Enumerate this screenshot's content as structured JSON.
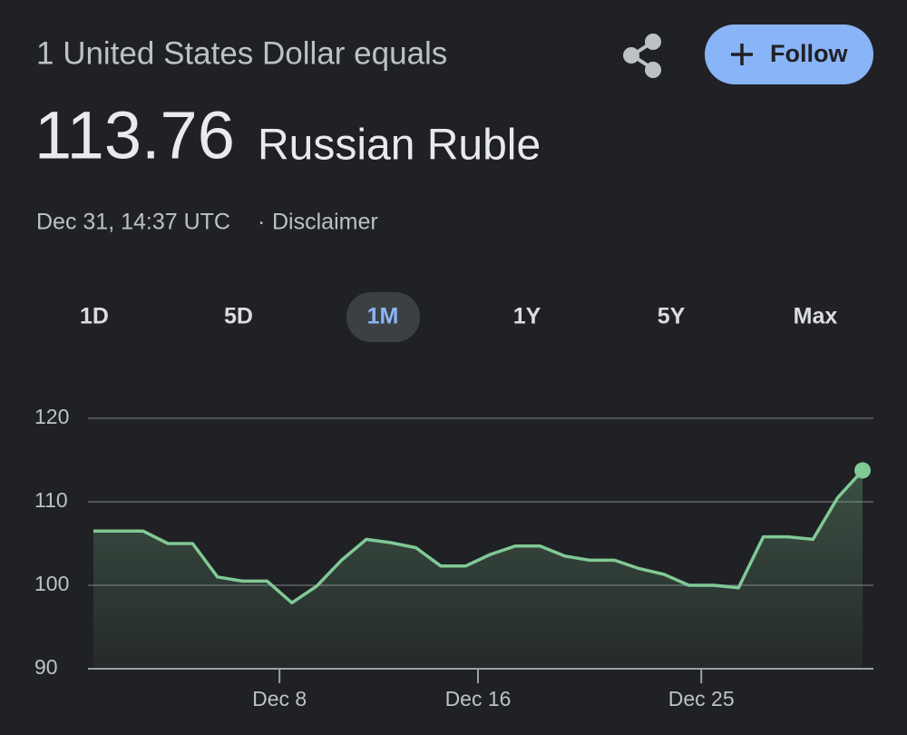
{
  "header": {
    "prefix": "1 United States Dollar equals",
    "rate": "113.76",
    "currency": "Russian Ruble",
    "timestamp": "Dec 31, 14:37 UTC",
    "separator": "·",
    "disclaimer": "Disclaimer",
    "follow": "Follow"
  },
  "tabs": [
    "1D",
    "5D",
    "1M",
    "1Y",
    "5Y",
    "Max"
  ],
  "chart_data": {
    "type": "area",
    "x": [
      0.5,
      1.5,
      2.5,
      3.5,
      4.5,
      5.5,
      6.5,
      7.5,
      8.5,
      9.5,
      10.5,
      11.5,
      12.5,
      13.5,
      14.5,
      15.5,
      16.5,
      17.5,
      18.5,
      19.5,
      20.5,
      21.5,
      22.5,
      23.5,
      24.5,
      25.5,
      26.5,
      27.5,
      28.5,
      29.5,
      30.5,
      31.5
    ],
    "values": [
      106.5,
      106.5,
      106.5,
      105,
      105,
      101,
      100.5,
      100.5,
      97.9,
      99.9,
      103,
      105.5,
      105.1,
      104.5,
      102.3,
      102.3,
      103.7,
      104.7,
      104.7,
      103.5,
      103,
      103,
      102,
      101.3,
      100,
      100,
      99.7,
      105.8,
      105.8,
      105.5,
      110.5,
      113.76
    ],
    "color": "#81c995",
    "xlim": [
      0.5,
      31.5
    ],
    "xticks": [
      {
        "value": 8,
        "label": "Dec 8"
      },
      {
        "value": 16,
        "label": "Dec 16"
      },
      {
        "value": 25,
        "label": "Dec 25"
      }
    ],
    "ylim": [
      90,
      120
    ],
    "yticks": [
      90,
      100,
      110,
      120
    ],
    "grid": true
  }
}
